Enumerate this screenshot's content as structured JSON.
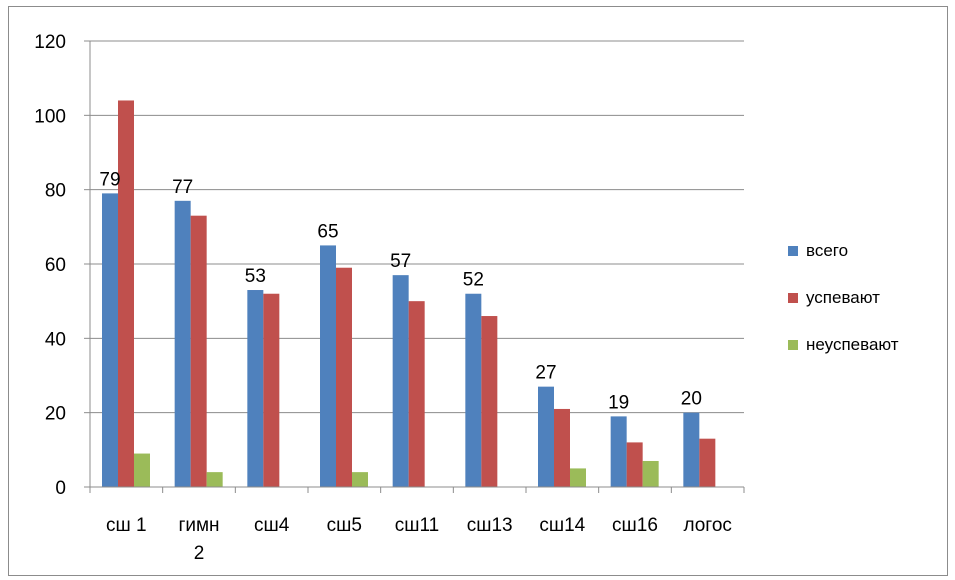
{
  "chart_data": {
    "type": "bar",
    "categories": [
      "сш 1",
      "гимн 2",
      "сш4",
      "сш5",
      "сш11",
      "сш13",
      "сш14",
      "сш16",
      "логос"
    ],
    "category_label_lines": [
      [
        "сш 1"
      ],
      [
        "гимн",
        "2"
      ],
      [
        "сш4"
      ],
      [
        "сш5"
      ],
      [
        "сш11"
      ],
      [
        "сш13"
      ],
      [
        "сш14"
      ],
      [
        "сш16"
      ],
      [
        "логос"
      ]
    ],
    "series": [
      {
        "name": "всего",
        "color": "#4F81BD",
        "values": [
          79,
          77,
          53,
          65,
          57,
          52,
          27,
          19,
          20
        ],
        "labels": [
          "79",
          "77",
          "53",
          "65",
          "57",
          "52",
          "27",
          "19",
          "20"
        ]
      },
      {
        "name": "успевают",
        "color": "#C0504D",
        "values": [
          104,
          73,
          52,
          59,
          50,
          46,
          21,
          12,
          13
        ]
      },
      {
        "name": "неуспевают",
        "color": "#9BBB59",
        "values": [
          9,
          4,
          0,
          4,
          0,
          0,
          5,
          7,
          0
        ]
      }
    ],
    "ylim": [
      0,
      120
    ],
    "yticks": [
      "0",
      "20",
      "40",
      "60",
      "80",
      "100",
      "120"
    ],
    "grid": true,
    "legend_position": "right"
  }
}
